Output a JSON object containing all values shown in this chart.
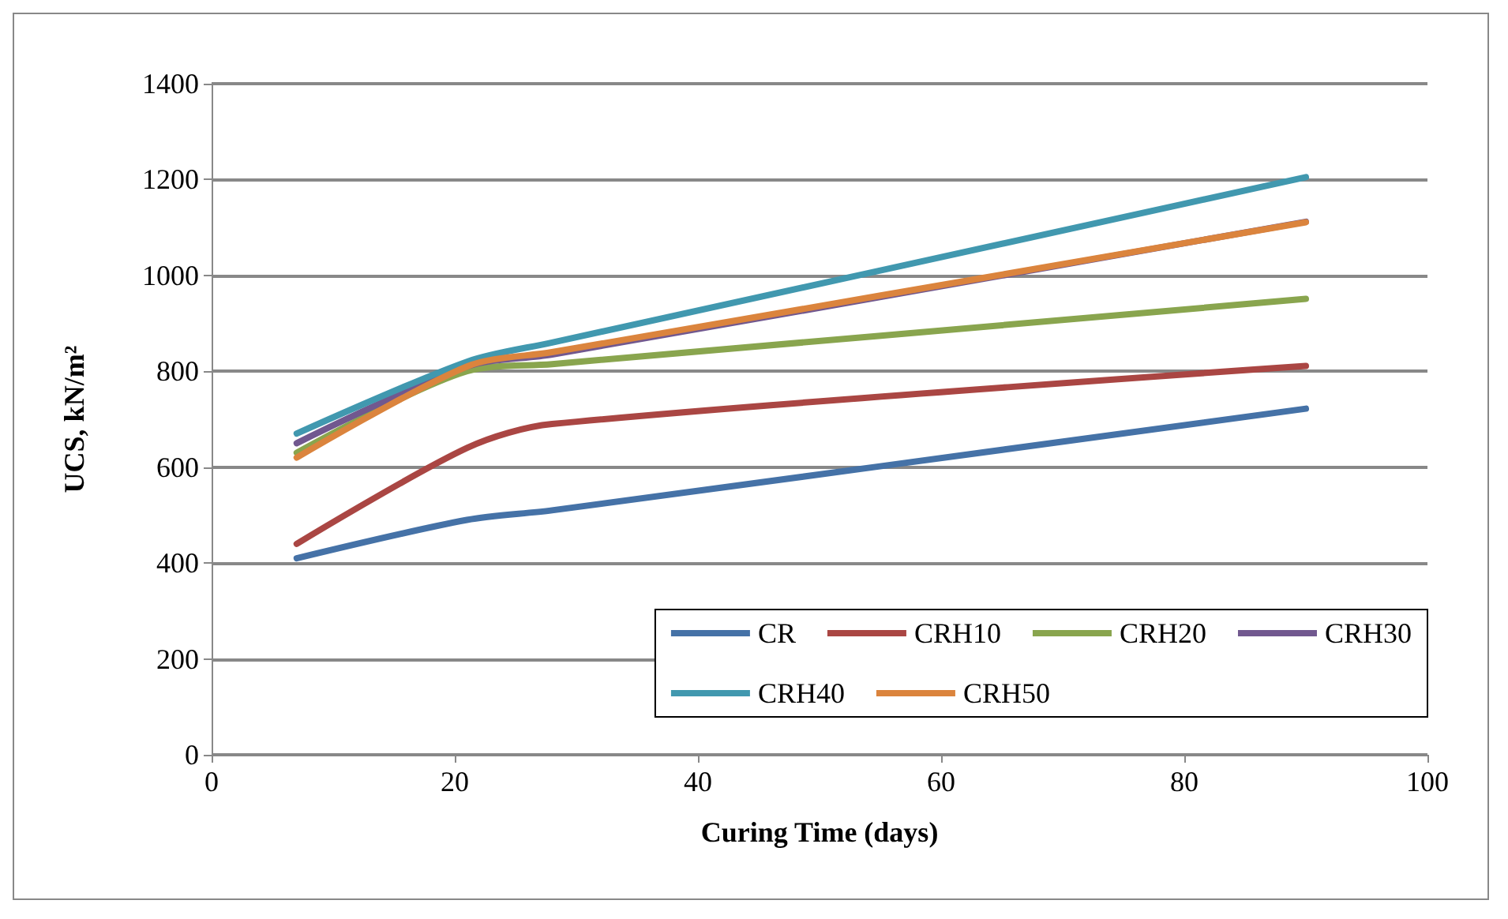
{
  "chart_data": {
    "type": "line",
    "xlabel": "Curing Time (days)",
    "ylabel": "UCS, kN/m²",
    "x": [
      7,
      21,
      28,
      90
    ],
    "series": [
      {
        "name": "CR",
        "color": "#4572a7",
        "values": [
          410,
          490,
          510,
          722
        ]
      },
      {
        "name": "CRH10",
        "color": "#aa4643",
        "values": [
          440,
          640,
          690,
          811
        ]
      },
      {
        "name": "CRH20",
        "color": "#89a54e",
        "values": [
          630,
          800,
          815,
          951
        ]
      },
      {
        "name": "CRH30",
        "color": "#71588f",
        "values": [
          650,
          810,
          835,
          1112
        ]
      },
      {
        "name": "CRH40",
        "color": "#4198af",
        "values": [
          670,
          820,
          860,
          1205
        ]
      },
      {
        "name": "CRH50",
        "color": "#db843d",
        "values": [
          620,
          810,
          840,
          1111
        ]
      }
    ],
    "xlim": [
      0,
      100
    ],
    "xticks": [
      0,
      20,
      40,
      60,
      80,
      100
    ],
    "ylim": [
      0,
      1400
    ],
    "yticks": [
      0,
      200,
      400,
      600,
      800,
      1000,
      1200,
      1400
    ],
    "grid": "y",
    "legend": "bottom right",
    "marker": "none",
    "line_style": "solid"
  }
}
